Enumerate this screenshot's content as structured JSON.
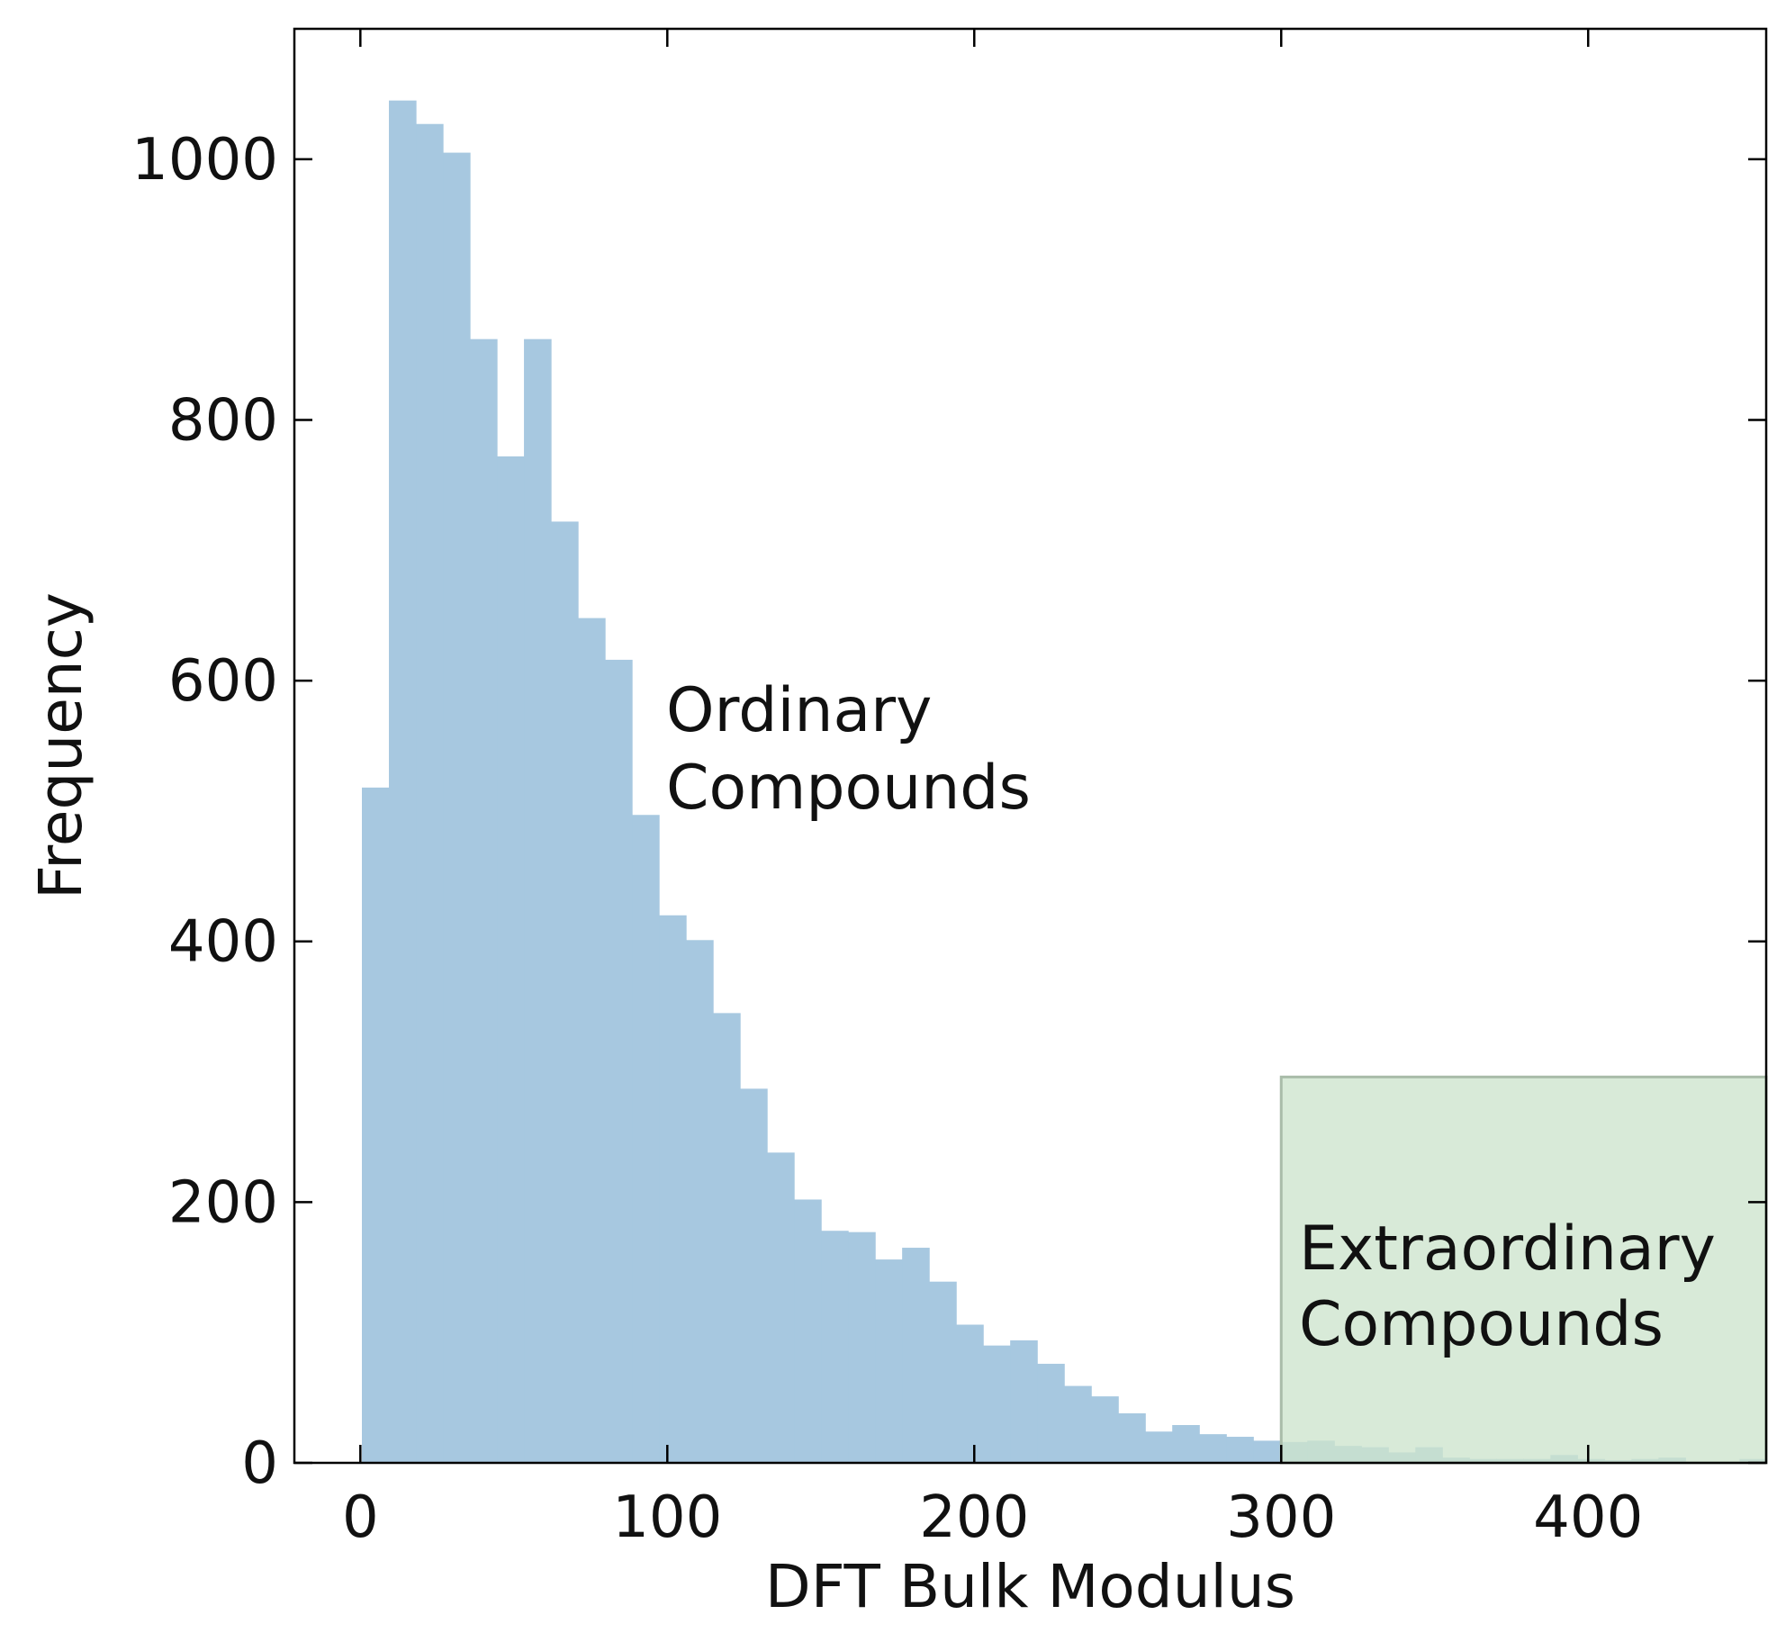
{
  "chart_data": {
    "type": "bar",
    "title": "",
    "xlabel": "DFT Bulk Modulus",
    "ylabel": "Frequency",
    "xlim": [
      -21.5,
      458
    ],
    "ylim": [
      0,
      1100
    ],
    "xticks": [
      "0",
      "100",
      "200",
      "300",
      "400"
    ],
    "yticks": [
      "0",
      "200",
      "400",
      "600",
      "800",
      "1000"
    ],
    "bin_width": 8.8,
    "bin_start": 0.5,
    "series": [
      {
        "name": "",
        "color": "#a7c8e0",
        "values": [
          518,
          1045,
          1027,
          1005,
          862,
          772,
          862,
          722,
          648,
          616,
          497,
          420,
          401,
          345,
          287,
          238,
          202,
          178,
          177,
          156,
          165,
          139,
          106,
          90,
          94,
          76,
          59,
          51,
          38,
          24,
          29,
          22,
          20,
          17,
          16,
          17,
          13,
          12,
          8,
          12,
          4,
          3,
          3,
          3,
          6,
          3,
          2,
          3,
          4,
          1,
          1,
          3
        ]
      }
    ],
    "highlight": {
      "x_start": 300,
      "x_end": 458,
      "y_top": 296,
      "color": "#cde4cd",
      "edge_color": "#a9bca9"
    },
    "annotations": [
      {
        "lines": [
          "Ordinary",
          "Compounds"
        ]
      },
      {
        "lines": [
          "Extraordinary",
          "Compounds"
        ]
      }
    ],
    "grid": false,
    "legend": "none"
  }
}
